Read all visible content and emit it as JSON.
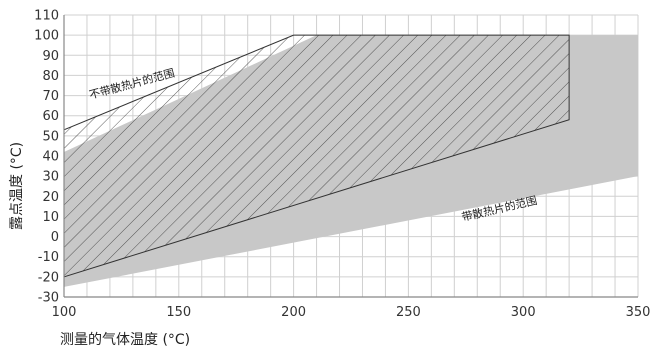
{
  "chart_data": {
    "type": "area",
    "xlabel": "测量的气体温度 (°C)",
    "ylabel": "露点温度 (°C)",
    "xlim": [
      100,
      350
    ],
    "ylim": [
      -30,
      110
    ],
    "x_ticks": [
      100,
      150,
      200,
      250,
      300,
      350
    ],
    "y_ticks": [
      110,
      100,
      90,
      80,
      70,
      60,
      50,
      40,
      30,
      20,
      10,
      0,
      -10,
      -20,
      -30
    ],
    "grid": true,
    "regions": [
      {
        "name": "带散热片的范围",
        "fill": "gray",
        "polygon": [
          [
            100,
            42
          ],
          [
            100,
            -25
          ],
          [
            350,
            30
          ],
          [
            350,
            100
          ],
          [
            210,
            100
          ]
        ]
      },
      {
        "name": "不带散热片的范围",
        "fill": "hatched",
        "polygon": [
          [
            100,
            53
          ],
          [
            100,
            -20
          ],
          [
            320,
            58
          ],
          [
            320,
            100
          ],
          [
            200,
            100
          ]
        ]
      }
    ],
    "annotations": [
      {
        "text": "不带散热片的范围",
        "x": 130,
        "y": 74
      },
      {
        "text": "带散热片的范围",
        "x": 290,
        "y": 12
      }
    ],
    "colors": {
      "gray_region": "#c8c8c8",
      "hatch": "#333333",
      "grid": "#d0d0d0",
      "axis": "#888888"
    }
  }
}
